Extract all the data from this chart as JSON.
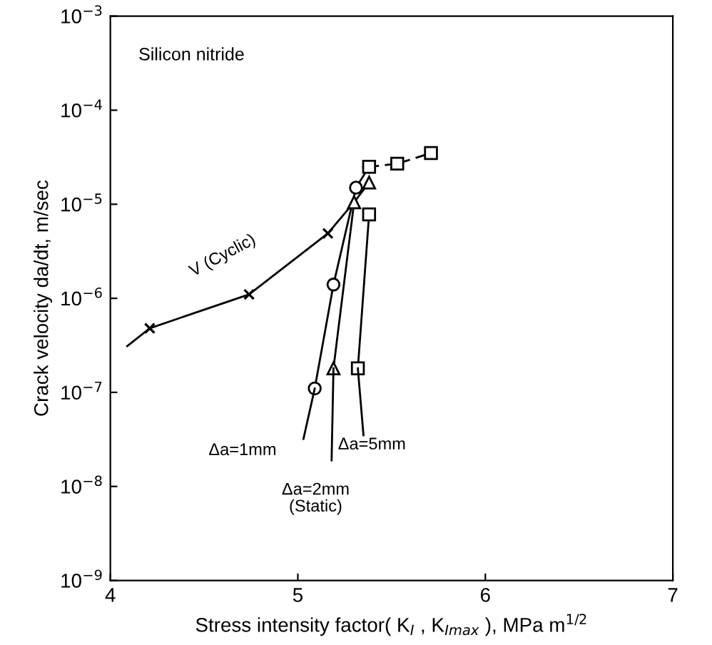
{
  "chart_data": {
    "type": "line",
    "xlabel": "Stress intensity factor( K$_{I}$ , K$_{Imax}$ ), MPa m$^{1/2}$",
    "ylabel": "Crack velocity da/dt, m/sec",
    "annotations": [
      "Silicon nitride",
      "V (Cyclic)",
      "Δa=1mm",
      "Δa=2mm\n(Static)",
      "Δa=5mm"
    ],
    "series": [
      {
        "type": "line",
        "color": "#000000",
        "marker": "none",
        "line_style": "solid",
        "x": [
          4.09,
          4.21,
          4.74,
          5.16,
          5.3
        ],
        "values": [
          3.1e-07,
          4.8e-07,
          1.1e-06,
          4.9e-06,
          1.05e-05
        ]
      },
      {
        "type": "scatter",
        "color": "#000000",
        "marker": "cross",
        "x": [
          4.21,
          4.74,
          5.16
        ],
        "values": [
          4.8e-07,
          1.1e-06,
          4.9e-06
        ]
      },
      {
        "type": "line",
        "color": "#000000",
        "marker": "circle",
        "line_style": "solid",
        "x": [
          5.09,
          5.19,
          5.31,
          5.38
        ],
        "values": [
          1.1e-07,
          1.4e-06,
          1.5e-05,
          2.5e-05
        ]
      },
      {
        "type": "line",
        "color": "#000000",
        "marker": "triangle",
        "line_style": "solid",
        "x": [
          5.19,
          5.3,
          5.38
        ],
        "values": [
          1.8e-07,
          1.05e-05,
          1.7e-05
        ]
      },
      {
        "type": "line",
        "color": "#000000",
        "marker": "square",
        "line_style": "solid",
        "x": [
          5.32,
          5.38
        ],
        "values": [
          1.8e-07,
          7.8e-06
        ]
      },
      {
        "type": "line",
        "color": "#000000",
        "marker": "square",
        "line_style": "dashed",
        "x": [
          5.38,
          5.53,
          5.71
        ],
        "values": [
          2.5e-05,
          2.7e-05,
          3.5e-05
        ]
      },
      {
        "type": "line",
        "color": "#000000",
        "marker": "none",
        "line_style": "solid",
        "x": [
          5.03,
          5.09
        ],
        "values": [
          3.2e-08,
          1.1e-07
        ]
      },
      {
        "type": "line",
        "color": "#000000",
        "marker": "none",
        "line_style": "solid",
        "x": [
          5.18,
          5.19
        ],
        "values": [
          1.9e-08,
          1.8e-07
        ]
      },
      {
        "type": "line",
        "color": "#000000",
        "marker": "none",
        "line_style": "solid",
        "x": [
          5.35,
          5.32
        ],
        "values": [
          3.5e-08,
          1.8e-07
        ]
      }
    ],
    "log": true,
    "xlim": [
      4,
      7
    ],
    "ylim": [
      1e-09,
      0.001
    ],
    "xticks": [
      4,
      5,
      6,
      7
    ],
    "yticks": [
      {
        "value": 1e-09,
        "label": "10$^{−9}$"
      },
      {
        "value": 1e-08,
        "label": "10$^{−8}$"
      },
      {
        "value": 1e-07,
        "label": "10$^{−7}$"
      },
      {
        "value": 1e-06,
        "label": "10$^{−6}$"
      },
      {
        "value": 1e-05,
        "label": "10$^{−5}$"
      },
      {
        "value": 0.0001,
        "label": "10$^{−4}$"
      },
      {
        "value": 0.001,
        "label": "10$^{−3}$"
      }
    ],
    "grid": false,
    "legend": false
  }
}
